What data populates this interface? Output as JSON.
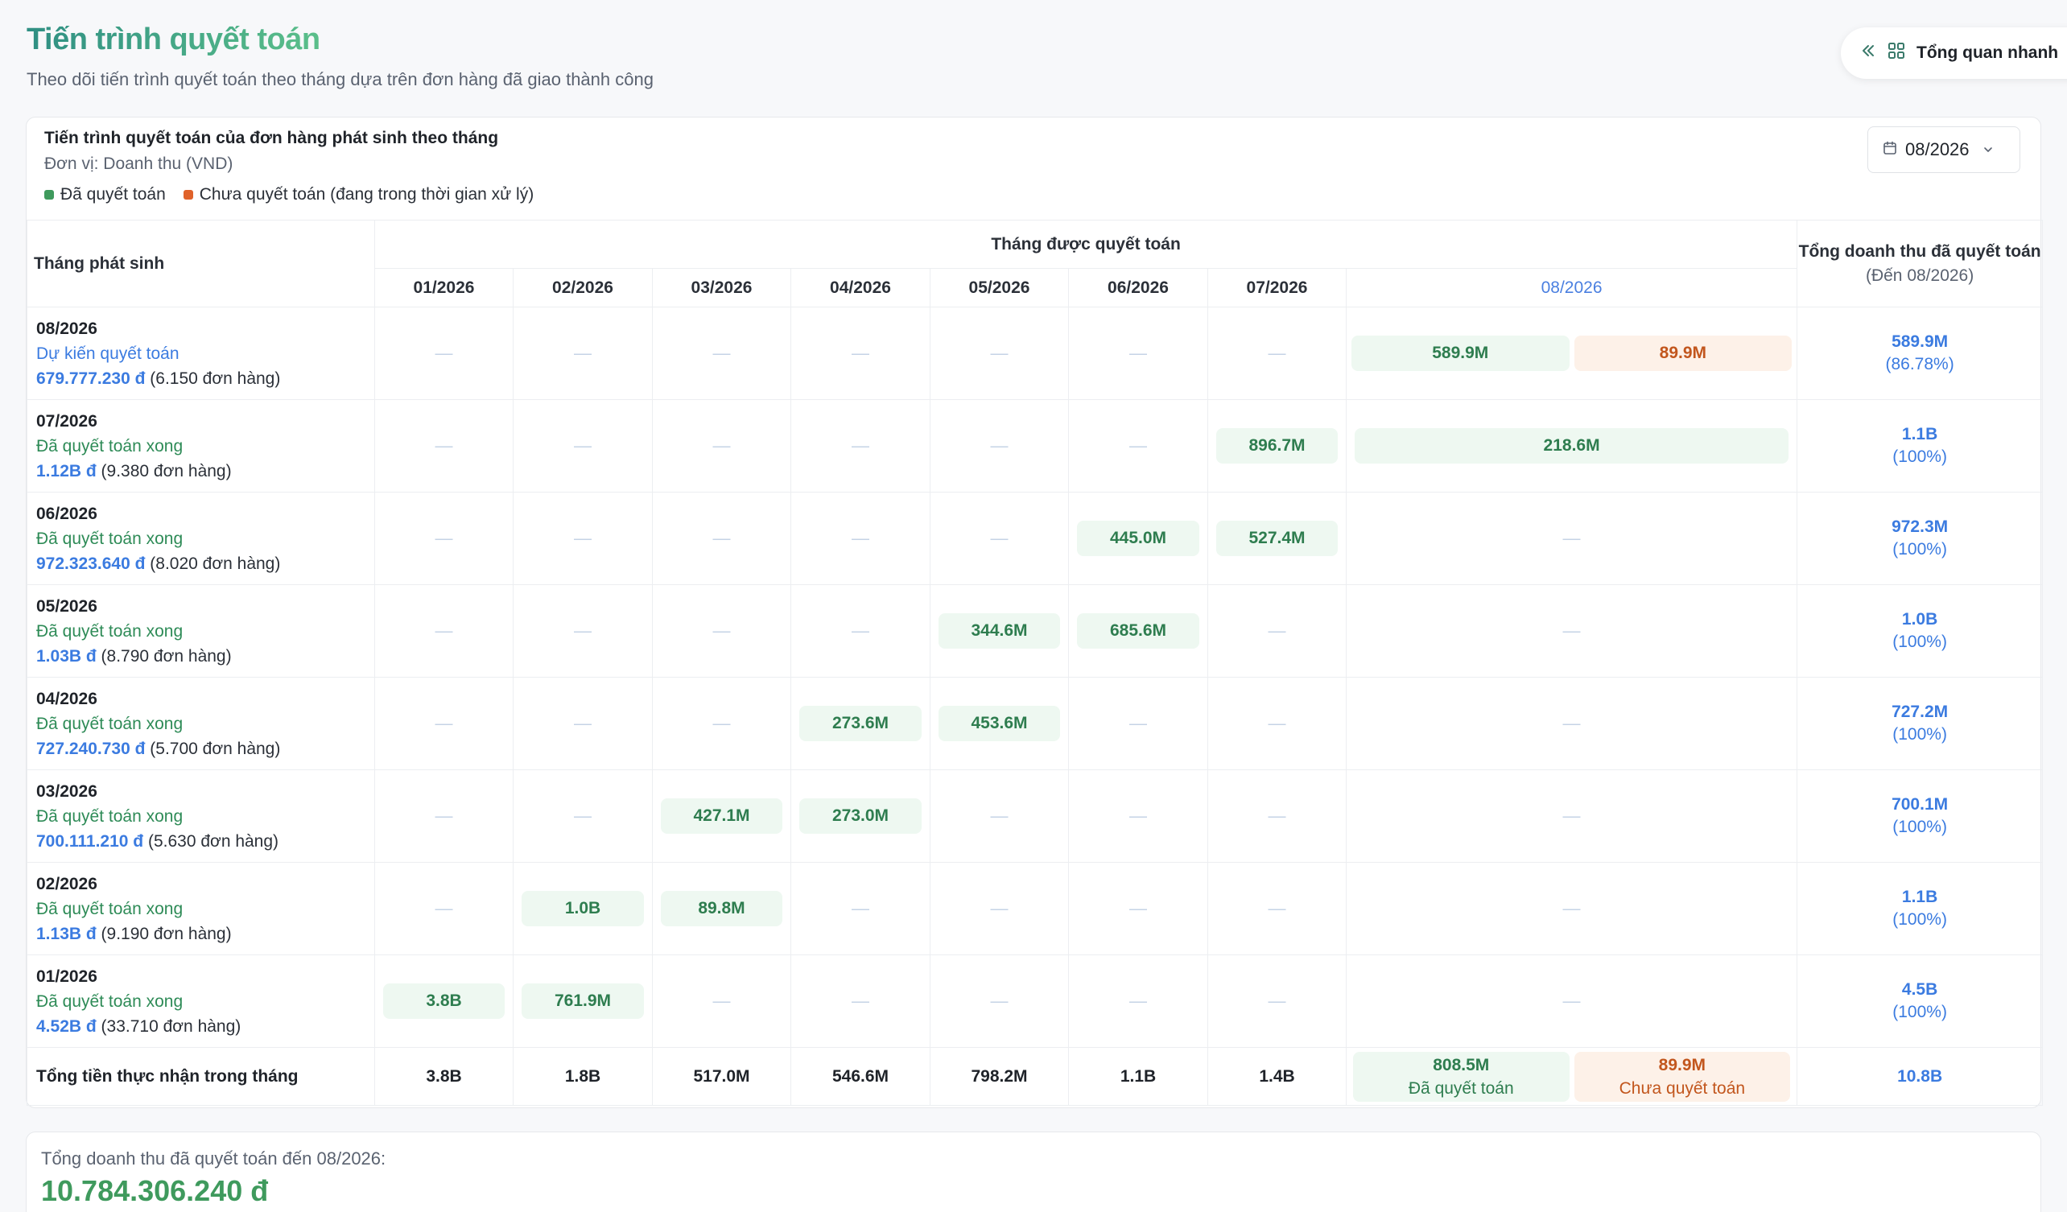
{
  "header": {
    "title": "Tiến trình quyết toán",
    "subtitle": "Theo dõi tiến trình quyết toán theo tháng dựa trên đơn hàng đã giao thành công",
    "quick_overview_label": "Tổng quan nhanh"
  },
  "card": {
    "title": "Tiến trình quyết toán của đơn hàng phát sinh theo tháng",
    "unit": "Đơn vị: Doanh thu (VND)",
    "legend": {
      "settled": "Đã quyết toán",
      "unsettled": "Chưa quyết toán (đang trong thời gian xử lý)"
    },
    "month_select_value": "08/2026"
  },
  "table": {
    "origin_header": "Tháng phát sinh",
    "settled_header": "Tháng được quyết toán",
    "total_header": "Tổng doanh thu đã quyết toán",
    "total_subheader": "(Đến 08/2026)",
    "months": [
      "01/2026",
      "02/2026",
      "03/2026",
      "04/2026",
      "05/2026",
      "06/2026",
      "07/2026",
      "08/2026"
    ],
    "rows": [
      {
        "month": "08/2026",
        "status": "Dự kiến quyết toán",
        "amount": "679.777.230 đ",
        "orders": "(6.150 đơn hàng)",
        "cells": [
          "—",
          "—",
          "—",
          "—",
          "—",
          "—",
          "—",
          ""
        ],
        "m8_settled": "589.9M",
        "m8_unsettled": "89.9M",
        "total": "589.9M",
        "pct": "(86.78%)"
      },
      {
        "month": "07/2026",
        "status": "Đã quyết toán xong",
        "amount": "1.12B đ",
        "orders": "(9.380 đơn hàng)",
        "cells": [
          "—",
          "—",
          "—",
          "—",
          "—",
          "—",
          "896.7M",
          "218.6M"
        ],
        "total": "1.1B",
        "pct": "(100%)"
      },
      {
        "month": "06/2026",
        "status": "Đã quyết toán xong",
        "amount": "972.323.640 đ",
        "orders": "(8.020 đơn hàng)",
        "cells": [
          "—",
          "—",
          "—",
          "—",
          "—",
          "445.0M",
          "527.4M",
          "—"
        ],
        "total": "972.3M",
        "pct": "(100%)"
      },
      {
        "month": "05/2026",
        "status": "Đã quyết toán xong",
        "amount": "1.03B đ",
        "orders": "(8.790 đơn hàng)",
        "cells": [
          "—",
          "—",
          "—",
          "—",
          "344.6M",
          "685.6M",
          "—",
          "—"
        ],
        "total": "1.0B",
        "pct": "(100%)"
      },
      {
        "month": "04/2026",
        "status": "Đã quyết toán xong",
        "amount": "727.240.730 đ",
        "orders": "(5.700 đơn hàng)",
        "cells": [
          "—",
          "—",
          "—",
          "273.6M",
          "453.6M",
          "—",
          "—",
          "—"
        ],
        "total": "727.2M",
        "pct": "(100%)"
      },
      {
        "month": "03/2026",
        "status": "Đã quyết toán xong",
        "amount": "700.111.210 đ",
        "orders": "(5.630 đơn hàng)",
        "cells": [
          "—",
          "—",
          "427.1M",
          "273.0M",
          "—",
          "—",
          "—",
          "—"
        ],
        "total": "700.1M",
        "pct": "(100%)"
      },
      {
        "month": "02/2026",
        "status": "Đã quyết toán xong",
        "amount": "1.13B đ",
        "orders": "(9.190 đơn hàng)",
        "cells": [
          "—",
          "1.0B",
          "89.8M",
          "—",
          "—",
          "—",
          "—",
          "—"
        ],
        "total": "1.1B",
        "pct": "(100%)"
      },
      {
        "month": "01/2026",
        "status": "Đã quyết toán xong",
        "amount": "4.52B đ",
        "orders": "(33.710 đơn hàng)",
        "cells": [
          "3.8B",
          "761.9M",
          "—",
          "—",
          "—",
          "—",
          "—",
          "—"
        ],
        "total": "4.5B",
        "pct": "(100%)"
      }
    ],
    "summary": {
      "label": "Tổng tiền thực nhận trong tháng",
      "values": [
        "3.8B",
        "1.8B",
        "517.0M",
        "546.6M",
        "798.2M",
        "1.1B",
        "1.4B"
      ],
      "m8_settled_value": "808.5M",
      "m8_settled_label": "Đã quyết toán",
      "m8_unsettled_value": "89.9M",
      "m8_unsettled_label": "Chưa quyết toán",
      "total": "10.8B"
    }
  },
  "footer": {
    "label": "Tổng doanh thu đã quyết toán đến 08/2026:",
    "value": "10.784.306.240 đ"
  },
  "colors": {
    "settled": "#3f9a5d",
    "unsettled": "#e0622a",
    "accent_blue": "#3b7be0"
  },
  "icons": [
    "double-chevron-left-icon",
    "grid-icon",
    "calendar-icon",
    "chevron-down-icon"
  ]
}
